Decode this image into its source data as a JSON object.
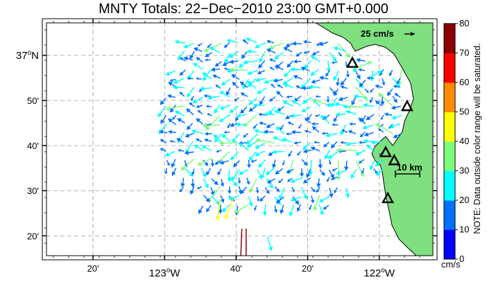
{
  "title": "MNTY Totals: 22−Dec−2010 23:00 GMT+0.000",
  "lat_labels": [
    {
      "text": "37",
      "sup": "o",
      "suffix": "N",
      "lat": 37.0
    },
    {
      "text": "50'",
      "lat": 36.8333
    },
    {
      "text": "40'",
      "lat": 36.6667
    },
    {
      "text": "30'",
      "lat": 36.5
    },
    {
      "text": "20'",
      "lat": 36.3333
    }
  ],
  "lon_labels": [
    {
      "text": "20'",
      "lon": -123.3333
    },
    {
      "text": "123",
      "sup": "o",
      "suffix": "W",
      "lon": -123.0
    },
    {
      "text": "40'",
      "lon": -122.6667
    },
    {
      "text": "20'",
      "lon": -122.3333
    },
    {
      "text": "122",
      "sup": "o",
      "suffix": "W",
      "lon": -122.0
    }
  ],
  "reference_vector": {
    "label": "25 cm/s",
    "speed": 25
  },
  "scale_bar": {
    "label": "10 km"
  },
  "colorbar": {
    "min": 0,
    "max": 80,
    "unit": "cm/s",
    "ticks": [
      "0",
      "10",
      "20",
      "30",
      "40",
      "50",
      "60",
      "70",
      "80"
    ],
    "colors": [
      "#0000ff",
      "#0070ff",
      "#00ffff",
      "#7cfc7c",
      "#ffff00",
      "#ff8c00",
      "#ff0000",
      "#8b0000"
    ],
    "note": "NOTE: Data outside color range will be saturated."
  },
  "colors": {
    "land": "#7ee07e",
    "coast_line": "#000000",
    "site_marker": "#000000",
    "grid": "#999999"
  },
  "sites": [
    {
      "name": "site-1",
      "lon": -122.125,
      "lat": 36.97
    },
    {
      "name": "site-2",
      "lon": -121.87,
      "lat": 36.81
    },
    {
      "name": "site-3",
      "lon": -121.97,
      "lat": 36.64
    },
    {
      "name": "site-4",
      "lon": -121.93,
      "lat": 36.61
    },
    {
      "name": "site-5",
      "lon": -121.96,
      "lat": 36.47
    }
  ],
  "current_samples": [
    {
      "lon": -122.74,
      "lat": 36.47,
      "u": -6,
      "v": -42
    },
    {
      "lon": -122.68,
      "lat": 36.47,
      "u": -16,
      "v": -40
    },
    {
      "lon": -122.64,
      "lat": 36.36,
      "u": -3,
      "v": -80
    },
    {
      "lon": -122.62,
      "lat": 36.36,
      "u": 0,
      "v": -78
    },
    {
      "lon": -122.78,
      "lat": 36.62,
      "u": -28,
      "v": -14
    },
    {
      "lon": -122.52,
      "lat": 36.33,
      "u": 8,
      "v": -28
    },
    {
      "lon": -122.12,
      "lat": 36.95,
      "u": 36,
      "v": 14
    },
    {
      "lon": -122.04,
      "lat": 36.92,
      "u": 22,
      "v": 12
    }
  ],
  "axes": {
    "lon_min": -123.55,
    "lon_max": -121.75,
    "lat_min": 36.26,
    "lat_max": 37.12
  }
}
